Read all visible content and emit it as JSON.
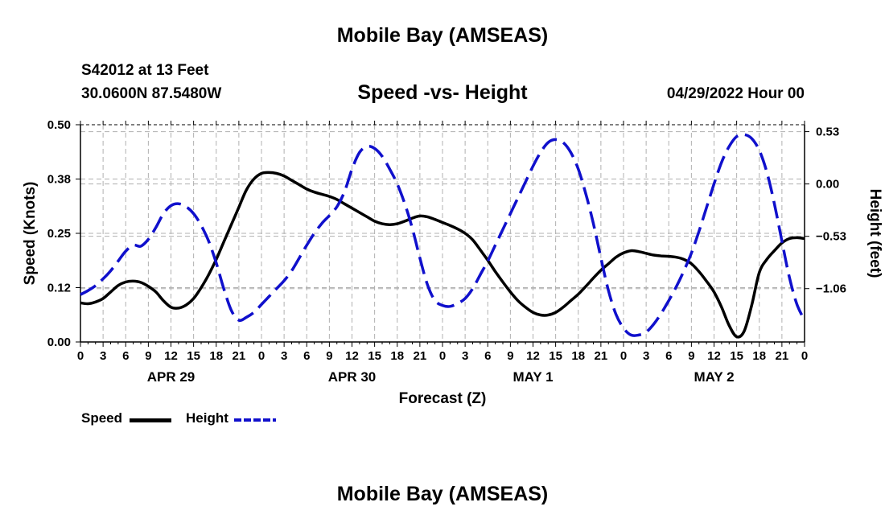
{
  "title": "Mobile Bay (AMSEAS)",
  "footer_title": "Mobile Bay (AMSEAS)",
  "station": "S42012 at 13 Feet",
  "coords": "30.0600N  87.5480W",
  "subtitle": "Speed -vs- Height",
  "datetime": "04/29/2022 Hour 00",
  "colors": {
    "speed": "#000000",
    "height": "#1010cc",
    "grid": "#b0b0b0"
  },
  "chart_data": {
    "type": "line",
    "xlabel": "Forecast (Z)",
    "ylabel_left": "Speed (Knots)",
    "ylabel_right": "Height (feet)",
    "x_range_hours": [
      0,
      96
    ],
    "x_tick_step_hours": 3,
    "x_tick_labels": [
      "0",
      "3",
      "6",
      "9",
      "12",
      "15",
      "18",
      "21",
      "0",
      "3",
      "6",
      "9",
      "12",
      "15",
      "18",
      "21",
      "0",
      "3",
      "6",
      "9",
      "12",
      "15",
      "18",
      "21",
      "0",
      "3",
      "6",
      "9",
      "12",
      "15",
      "18",
      "21",
      "0"
    ],
    "day_labels": [
      {
        "label": "APR 29",
        "hour": 12
      },
      {
        "label": "APR 30",
        "hour": 36
      },
      {
        "label": "MAY 1",
        "hour": 60
      },
      {
        "label": "MAY 2",
        "hour": 84
      }
    ],
    "y_left_range": [
      0.0,
      0.5
    ],
    "y_left_ticks": [
      0.0,
      0.125,
      0.25,
      0.375,
      0.5
    ],
    "y_left_tick_labels": [
      "0.00",
      "0.12",
      "0.25",
      "0.38",
      "0.50"
    ],
    "y_right_range": [
      -1.6,
      0.6
    ],
    "y_right_ticks": [
      0.53,
      0.0,
      -0.53,
      -1.06
    ],
    "y_right_tick_labels": [
      "0.53",
      "0.00",
      "−0.53",
      "−1.06"
    ],
    "grid": true,
    "series": [
      {
        "name": "Speed",
        "axis": "left",
        "style": "solid",
        "x": [
          0,
          1,
          2,
          3,
          4,
          5,
          6,
          7,
          8,
          9,
          10,
          11,
          12,
          13,
          14,
          15,
          16,
          17,
          18,
          19,
          20,
          21,
          22,
          23,
          24,
          25,
          26,
          27,
          28,
          29,
          30,
          31,
          32,
          33,
          34,
          35,
          36,
          37,
          38,
          39,
          40,
          41,
          42,
          43,
          44,
          45,
          46,
          47,
          48,
          49,
          50,
          51,
          52,
          53,
          54,
          55,
          56,
          57,
          58,
          59,
          60,
          61,
          62,
          63,
          64,
          65,
          66,
          67,
          68,
          69,
          70,
          71,
          72,
          73,
          74,
          75,
          76,
          77,
          78,
          79,
          80,
          81,
          82,
          83,
          84,
          85,
          86,
          87,
          88,
          89,
          90,
          91,
          92,
          93,
          94,
          95,
          96
        ],
        "values": [
          0.09,
          0.088,
          0.092,
          0.1,
          0.115,
          0.13,
          0.138,
          0.14,
          0.137,
          0.128,
          0.115,
          0.095,
          0.08,
          0.078,
          0.085,
          0.1,
          0.125,
          0.155,
          0.19,
          0.23,
          0.27,
          0.31,
          0.35,
          0.375,
          0.388,
          0.39,
          0.388,
          0.382,
          0.372,
          0.362,
          0.352,
          0.345,
          0.34,
          0.335,
          0.328,
          0.318,
          0.308,
          0.298,
          0.288,
          0.278,
          0.272,
          0.27,
          0.272,
          0.278,
          0.285,
          0.29,
          0.288,
          0.282,
          0.275,
          0.268,
          0.26,
          0.25,
          0.235,
          0.212,
          0.188,
          0.162,
          0.138,
          0.115,
          0.095,
          0.08,
          0.068,
          0.062,
          0.062,
          0.068,
          0.08,
          0.095,
          0.11,
          0.128,
          0.147,
          0.165,
          0.18,
          0.195,
          0.205,
          0.21,
          0.208,
          0.204,
          0.2,
          0.198,
          0.197,
          0.195,
          0.19,
          0.18,
          0.162,
          0.14,
          0.115,
          0.08,
          0.038,
          0.012,
          0.025,
          0.085,
          0.16,
          0.19,
          0.21,
          0.228,
          0.238,
          0.24,
          0.238
        ]
      },
      {
        "name": "Height",
        "axis": "right",
        "style": "dashed",
        "x": [
          0,
          1,
          2,
          3,
          4,
          5,
          6,
          7,
          8,
          9,
          10,
          11,
          12,
          13,
          14,
          15,
          16,
          17,
          18,
          19,
          20,
          21,
          22,
          23,
          24,
          25,
          26,
          27,
          28,
          29,
          30,
          31,
          32,
          33,
          34,
          35,
          36,
          37,
          38,
          39,
          40,
          41,
          42,
          43,
          44,
          45,
          46,
          47,
          48,
          49,
          50,
          51,
          52,
          53,
          54,
          55,
          56,
          57,
          58,
          59,
          60,
          61,
          62,
          63,
          64,
          65,
          66,
          67,
          68,
          69,
          70,
          71,
          72,
          73,
          74,
          75,
          76,
          77,
          78,
          79,
          80,
          81,
          82,
          83,
          84,
          85,
          86,
          87,
          88,
          89,
          90,
          91,
          92,
          93,
          94,
          95,
          96
        ],
        "values": [
          -1.12,
          -1.08,
          -1.03,
          -0.96,
          -0.88,
          -0.78,
          -0.68,
          -0.62,
          -0.63,
          -0.56,
          -0.44,
          -0.3,
          -0.22,
          -0.2,
          -0.23,
          -0.3,
          -0.42,
          -0.58,
          -0.8,
          -1.06,
          -1.28,
          -1.38,
          -1.35,
          -1.3,
          -1.22,
          -1.14,
          -1.06,
          -0.98,
          -0.88,
          -0.75,
          -0.62,
          -0.5,
          -0.4,
          -0.32,
          -0.23,
          -0.08,
          0.15,
          0.32,
          0.38,
          0.36,
          0.28,
          0.15,
          0.0,
          -0.2,
          -0.45,
          -0.75,
          -1.02,
          -1.18,
          -1.23,
          -1.24,
          -1.21,
          -1.16,
          -1.06,
          -0.92,
          -0.78,
          -0.62,
          -0.46,
          -0.3,
          -0.14,
          0.02,
          0.18,
          0.32,
          0.42,
          0.45,
          0.42,
          0.32,
          0.15,
          -0.1,
          -0.4,
          -0.75,
          -1.08,
          -1.32,
          -1.46,
          -1.53,
          -1.53,
          -1.5,
          -1.42,
          -1.31,
          -1.18,
          -1.04,
          -0.88,
          -0.7,
          -0.48,
          -0.24,
          0.0,
          0.22,
          0.38,
          0.48,
          0.5,
          0.46,
          0.34,
          0.12,
          -0.2,
          -0.58,
          -0.95,
          -1.22,
          -1.38
        ]
      }
    ],
    "legend": [
      {
        "label": "Speed",
        "style": "solid"
      },
      {
        "label": "Height",
        "style": "dashed"
      }
    ]
  }
}
